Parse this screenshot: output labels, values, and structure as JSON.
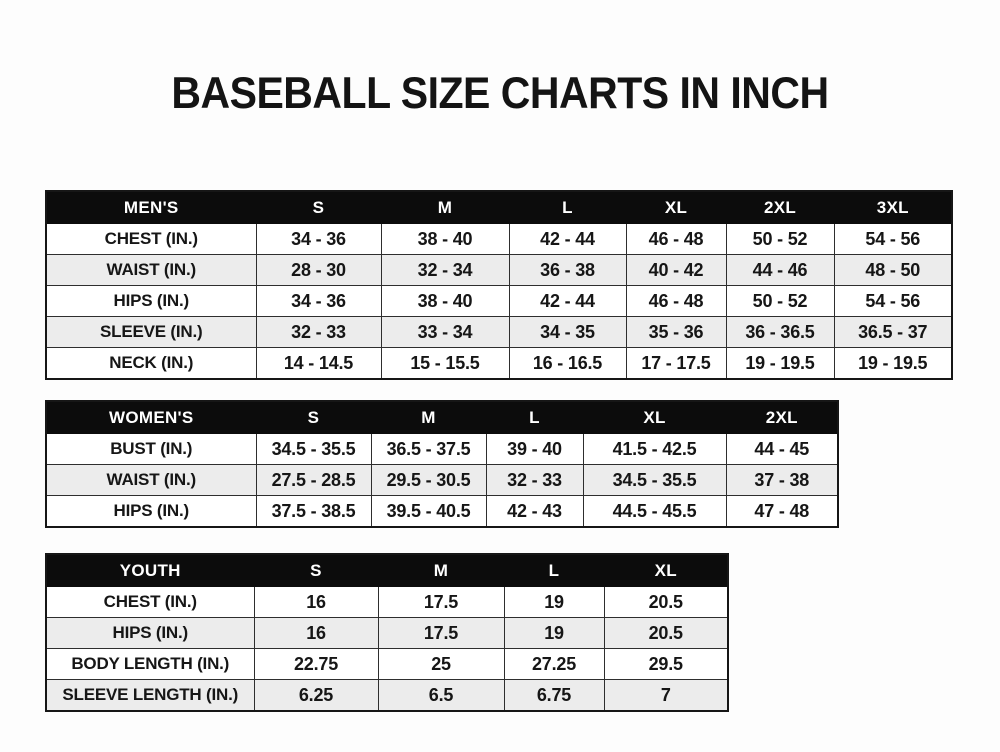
{
  "page": {
    "title": "BASEBALL SIZE CHARTS IN INCH"
  },
  "colors": {
    "header_bg": "#0c0c0c",
    "header_text": "#ffffff",
    "row_stripe": "#ececec",
    "text": "#161616",
    "background": "#fdfdfd"
  },
  "tables": [
    {
      "id": "mens",
      "header": [
        "MEN'S",
        "S",
        "M",
        "L",
        "XL",
        "2XL",
        "3XL"
      ],
      "rows": [
        [
          "CHEST (IN.)",
          "34 - 36",
          "38 - 40",
          "42 - 44",
          "46 - 48",
          "50 - 52",
          "54 - 56"
        ],
        [
          "WAIST (IN.)",
          "28 - 30",
          "32 - 34",
          "36 - 38",
          "40 - 42",
          "44 - 46",
          "48 - 50"
        ],
        [
          "HIPS (IN.)",
          "34 - 36",
          "38 - 40",
          "42 - 44",
          "46 - 48",
          "50 - 52",
          "54 - 56"
        ],
        [
          "SLEEVE (IN.)",
          "32 - 33",
          "33 - 34",
          "34 - 35",
          "35 - 36",
          "36 - 36.5",
          "36.5 - 37"
        ],
        [
          "NECK (IN.)",
          "14 - 14.5",
          "15 - 15.5",
          "16 - 16.5",
          "17 - 17.5",
          "19 - 19.5",
          "19 - 19.5"
        ]
      ]
    },
    {
      "id": "womens",
      "header": [
        "WOMEN'S",
        "S",
        "M",
        "L",
        "XL",
        "2XL"
      ],
      "rows": [
        [
          "BUST (IN.)",
          "34.5 - 35.5",
          "36.5 - 37.5",
          "39 - 40",
          "41.5 - 42.5",
          "44 - 45"
        ],
        [
          "WAIST (IN.)",
          "27.5 - 28.5",
          "29.5 - 30.5",
          "32 - 33",
          "34.5 - 35.5",
          "37 - 38"
        ],
        [
          "HIPS (IN.)",
          "37.5 - 38.5",
          "39.5 - 40.5",
          "42 - 43",
          "44.5 - 45.5",
          "47 - 48"
        ]
      ]
    },
    {
      "id": "youth",
      "header": [
        "YOUTH",
        "S",
        "M",
        "L",
        "XL"
      ],
      "rows": [
        [
          "CHEST (IN.)",
          "16",
          "17.5",
          "19",
          "20.5"
        ],
        [
          "HIPS (IN.)",
          "16",
          "17.5",
          "19",
          "20.5"
        ],
        [
          "BODY LENGTH (IN.)",
          "22.75",
          "25",
          "27.25",
          "29.5"
        ],
        [
          "SLEEVE LENGTH (IN.)",
          "6.25",
          "6.5",
          "6.75",
          "7"
        ]
      ]
    }
  ]
}
